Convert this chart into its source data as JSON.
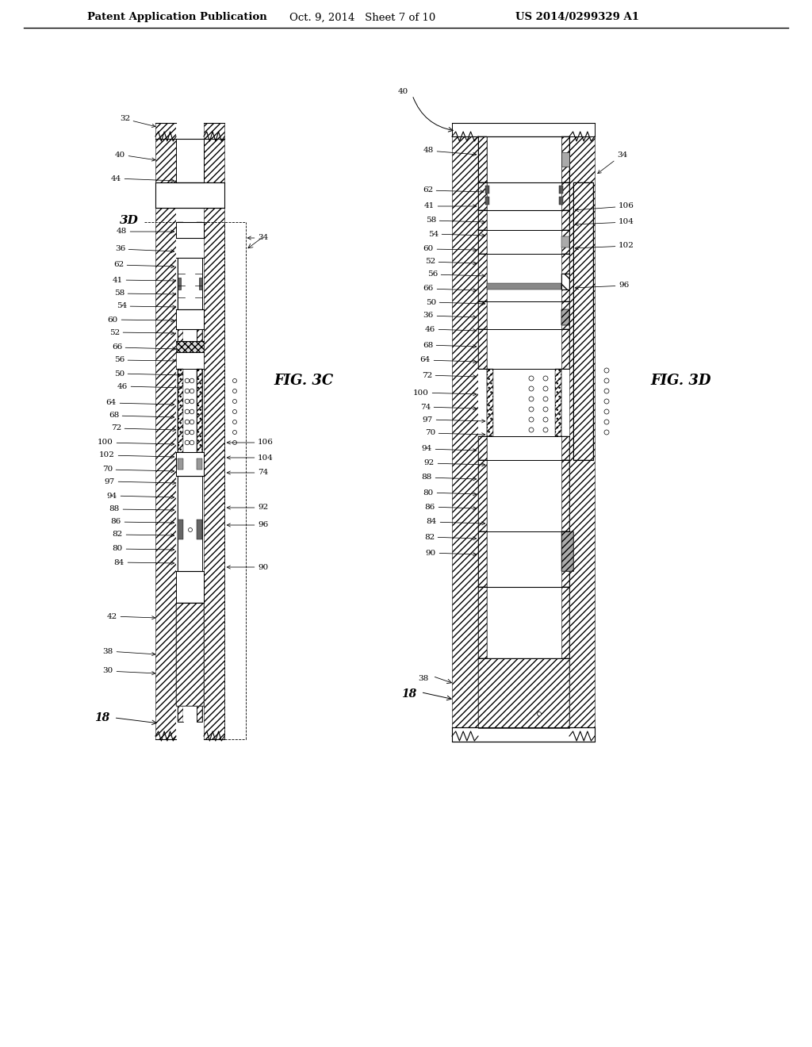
{
  "header_left": "Patent Application Publication",
  "header_mid": "Oct. 9, 2014   Sheet 7 of 10",
  "header_right": "US 2014/0299329 A1",
  "fig_c": "FIG. 3C",
  "fig_d": "FIG. 3D",
  "bg": "#ffffff",
  "lc": "#000000",
  "fs": 7.5,
  "hfs": 9.5
}
